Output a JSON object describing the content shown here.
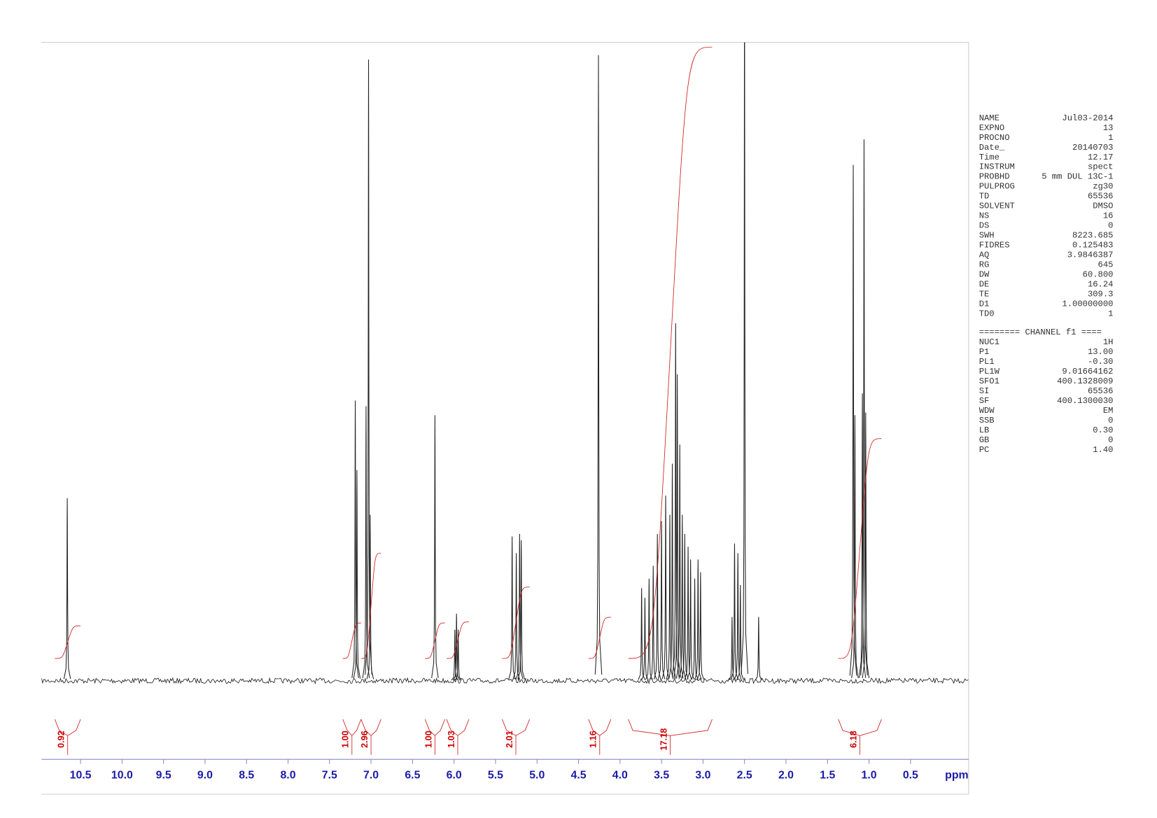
{
  "chart_data": {
    "type": "nmr",
    "x_label": "ppm",
    "xlim": [
      10.97,
      -0.2
    ],
    "ylim": [
      0,
      100
    ],
    "xticks": [
      10.5,
      {
        "value": 10,
        "label": "10.0"
      },
      9.5,
      {
        "value": 9,
        "label": "9.0"
      },
      8.5,
      {
        "value": 8,
        "label": "8.0"
      },
      7.5,
      {
        "value": 7,
        "label": "7.0"
      },
      6.5,
      {
        "value": 6,
        "label": "6.0"
      },
      5.5,
      {
        "value": 5,
        "label": "5.0"
      },
      4.5,
      {
        "value": 4,
        "label": "4.0"
      },
      3.5,
      {
        "value": 3,
        "label": "3.0"
      },
      2.5,
      {
        "value": 2,
        "label": "2.0"
      },
      1.5,
      {
        "value": 1,
        "label": "1.0"
      },
      0.5
    ],
    "series": [
      {
        "name": "spectrum",
        "color": "#222222",
        "x": [
          10.66,
          7.19,
          7.17,
          7.06,
          7.03,
          7.01,
          6.23,
          5.99,
          5.97,
          5.95,
          5.3,
          5.25,
          5.21,
          5.19,
          4.26,
          3.74,
          3.7,
          3.65,
          3.6,
          3.55,
          3.5,
          3.45,
          3.4,
          3.37,
          3.33,
          3.31,
          3.28,
          3.25,
          3.22,
          3.18,
          3.15,
          3.1,
          3.06,
          3.03,
          2.65,
          2.62,
          2.58,
          2.55,
          2.5,
          2.33,
          1.19,
          1.17,
          1.08,
          1.06,
          1.04
        ],
        "values": [
          28.6,
          43.9,
          33,
          43,
          97.3,
          26,
          41.6,
          8,
          10.5,
          8,
          22.6,
          20,
          23,
          22,
          98,
          14.5,
          13,
          16,
          18,
          23,
          25,
          29,
          26,
          34,
          56,
          48,
          37,
          26,
          23,
          21,
          19,
          16,
          19,
          17,
          10,
          21.5,
          20,
          15,
          110,
          10,
          80.8,
          41.6,
          45,
          84.8,
          42
        ]
      }
    ],
    "integrals": {
      "color": "#d02020",
      "values": [
        0.92,
        1,
        2.96,
        1,
        1.03,
        2.01,
        1.16,
        17.18,
        6.18
      ],
      "value_labels": [
        "0.92",
        "1.00",
        "2.96",
        "1.00",
        "1.03",
        "2.01",
        "1.16",
        "17.18",
        "6.18"
      ],
      "ranges": [
        [
          10.81,
          10.5
        ],
        [
          7.34,
          7.12
        ],
        [
          7.12,
          6.88
        ],
        [
          6.35,
          6.11
        ],
        [
          6.09,
          5.82
        ],
        [
          5.42,
          5.09
        ],
        [
          4.38,
          4.11
        ],
        [
          3.9,
          2.89
        ],
        [
          1.37,
          0.85
        ]
      ]
    }
  },
  "parameters": {
    "rows": [
      [
        "NAME",
        "Jul03-2014"
      ],
      [
        "EXPNO",
        "13"
      ],
      [
        "PROCNO",
        "1"
      ],
      [
        "Date_",
        "20140703"
      ],
      [
        "Time",
        "12.17"
      ],
      [
        "INSTRUM",
        "spect"
      ],
      [
        "PROBHD",
        "5 mm DUL 13C-1"
      ],
      [
        "PULPROG",
        "zg30"
      ],
      [
        "TD",
        "65536"
      ],
      [
        "SOLVENT",
        "DMSO"
      ],
      [
        "NS",
        "16"
      ],
      [
        "DS",
        "0"
      ],
      [
        "SWH",
        "8223.685"
      ],
      [
        "FIDRES",
        "0.125483"
      ],
      [
        "AQ",
        "3.9846387"
      ],
      [
        "RG",
        "645"
      ],
      [
        "DW",
        "60.800"
      ],
      [
        "DE",
        "16.24"
      ],
      [
        "TE",
        "309.3"
      ],
      [
        "D1",
        "1.00000000"
      ],
      [
        "TD0",
        "1"
      ]
    ],
    "channel_header": "======== CHANNEL f1 ====",
    "channel_rows": [
      [
        "NUC1",
        "1H"
      ],
      [
        "P1",
        "13.00"
      ],
      [
        "PL1",
        "-0.30"
      ],
      [
        "PL1W",
        "9.01664162"
      ],
      [
        "SFO1",
        "400.1328009"
      ],
      [
        "SI",
        "65536"
      ],
      [
        "SF",
        "400.1300030"
      ],
      [
        "WDW",
        "EM"
      ],
      [
        "SSB",
        "0"
      ],
      [
        "LB",
        "0.30"
      ],
      [
        "GB",
        "0"
      ],
      [
        "PC",
        "1.40"
      ]
    ]
  }
}
